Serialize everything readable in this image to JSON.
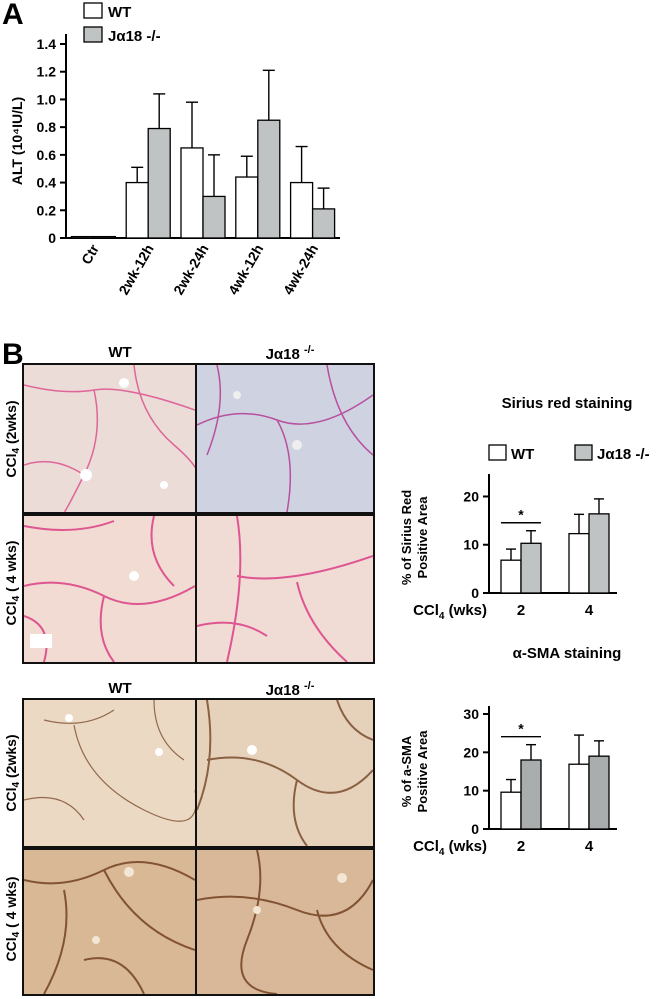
{
  "panel_a": {
    "letter": "A"
  },
  "panel_b": {
    "letter": "B"
  },
  "colors": {
    "wt": "#ffffff",
    "ko": "#bfc3c3",
    "ko_a": "#a9adad",
    "sirius_pink": "#d9337f",
    "sma_brown": "#6b3a1a"
  },
  "micro_sirius": {
    "col_wt": "WT",
    "col_ko": "Jα18",
    "col_ko_sup": "-/-",
    "row1": "CCl",
    "row1_sub": "4",
    "row1_rest": " (2wks)",
    "row2": "CCl",
    "row2_sub": "4",
    "row2_rest": " ( 4 wks)"
  },
  "micro_sma": {
    "col_wt": "WT",
    "col_ko": "Jα18",
    "col_ko_sup": "-/-",
    "row1": "CCl",
    "row1_sub": "4",
    "row1_rest": " (2wks)",
    "row2": "CCl",
    "row2_sub": "4",
    "row2_rest": " ( 4 wks)"
  },
  "chart_data": [
    {
      "type": "bar",
      "title": "",
      "ylabel": "ALT (10⁴IU/L)",
      "xlabel": "",
      "categories": [
        "Ctr",
        "2wk-12h",
        "2wk-24h",
        "4wk-12h",
        "4wk-24h"
      ],
      "series": [
        {
          "name": "WT",
          "values": [
            0.01,
            0.4,
            0.65,
            0.44,
            0.4
          ],
          "errors": [
            0.0,
            0.11,
            0.33,
            0.15,
            0.26
          ]
        },
        {
          "name": "Jα18 -/-",
          "values": [
            0.01,
            0.79,
            0.3,
            0.85,
            0.21
          ],
          "errors": [
            0.0,
            0.25,
            0.3,
            0.36,
            0.15
          ]
        }
      ],
      "yticks": [
        "0",
        "0.2",
        "0.4",
        "0.6",
        "0.8",
        "1.0",
        "1.2",
        "1.4"
      ],
      "ylim": [
        0,
        1.4
      ],
      "legend": "top-left"
    },
    {
      "type": "bar",
      "title": "Sirius red staining",
      "ylabel": "% of Sirius Red Positive Area",
      "xlabel": "CCl4 (wks)",
      "xlabel_main": "CCl",
      "xlabel_sub": "4",
      "xlabel_rest": " (wks)",
      "categories": [
        "2",
        "4"
      ],
      "series": [
        {
          "name": "WT",
          "values": [
            6.8,
            12.3
          ],
          "errors": [
            2.3,
            4.0
          ]
        },
        {
          "name": "Jα18 -/-",
          "values": [
            10.3,
            16.4
          ],
          "errors": [
            2.6,
            3.1
          ]
        }
      ],
      "yticks": [
        "0",
        "10",
        "20"
      ],
      "ylim": [
        0,
        23
      ],
      "significance": "*",
      "legend": "top"
    },
    {
      "type": "bar",
      "title": "α-SMA staining",
      "ylabel": "% of a-SMA Positive Area",
      "xlabel": "CCl4 (wks)",
      "xlabel_main": "CCl",
      "xlabel_sub": "4",
      "xlabel_rest": " (wks)",
      "categories": [
        "2",
        "4"
      ],
      "series": [
        {
          "name": "WT",
          "values": [
            9.6,
            16.9
          ],
          "errors": [
            3.3,
            7.6
          ]
        },
        {
          "name": "Jα18 -/-",
          "values": [
            18.0,
            19.0
          ],
          "errors": [
            4.0,
            4.0
          ]
        }
      ],
      "yticks": [
        "0",
        "10",
        "20",
        "30"
      ],
      "ylim": [
        0,
        30
      ],
      "significance": "*"
    }
  ]
}
